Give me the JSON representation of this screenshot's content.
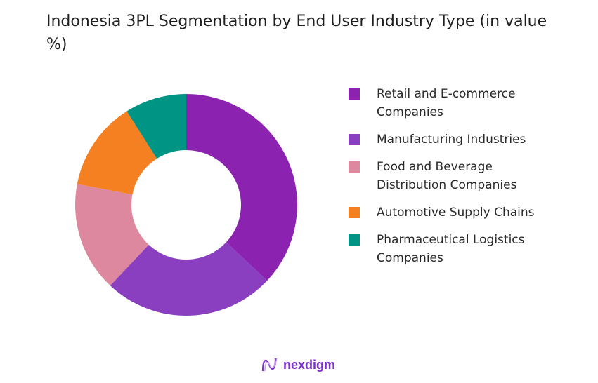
{
  "chart_data": {
    "type": "pie",
    "variant": "donut",
    "title": "Indonesia 3PL Segmentation by End User Industry Type (in value %)",
    "categories": [
      "Retail and E-commerce Companies",
      "Manufacturing Industries",
      "Food and Beverage Distribution Companies",
      "Automotive Supply Chains",
      "Pharmaceutical Logistics Companies"
    ],
    "values": [
      37,
      25,
      16,
      13,
      9
    ],
    "colors": [
      "#8b22b0",
      "#8a3fc0",
      "#de88a0",
      "#f58022",
      "#009484"
    ],
    "legend_position": "right"
  },
  "legend_lines": [
    [
      "Retail and E-commerce",
      "Companies"
    ],
    [
      "Manufacturing Industries"
    ],
    [
      "Food and Beverage",
      "Distribution Companies"
    ],
    [
      "Automotive Supply Chains"
    ],
    [
      "Pharmaceutical Logistics",
      "Companies"
    ]
  ],
  "logo": {
    "text": "nexdigm"
  }
}
